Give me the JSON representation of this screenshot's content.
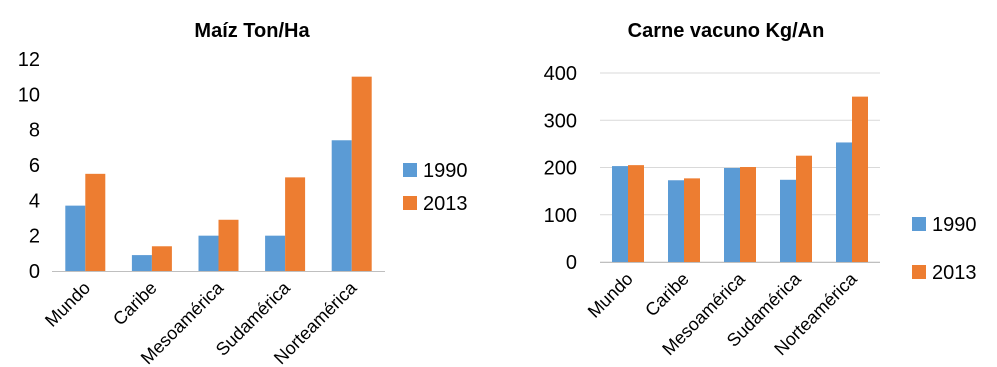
{
  "chart_data": [
    {
      "type": "bar",
      "title": "Maíz Ton/Ha",
      "categories": [
        "Mundo",
        "Caribe",
        "Mesoamérica",
        "Sudamérica",
        "Norteamérica"
      ],
      "series": [
        {
          "name": "1990",
          "color": "#5b9bd5",
          "values": [
            3.7,
            0.9,
            2.0,
            2.0,
            7.4
          ]
        },
        {
          "name": "2013",
          "color": "#ed7d31",
          "values": [
            5.5,
            1.4,
            2.9,
            5.3,
            11.0
          ]
        }
      ],
      "ylim": [
        0,
        12
      ],
      "yticks": [
        "0",
        "2",
        "4",
        "6",
        "8",
        "10",
        "12"
      ],
      "grid": false,
      "legend": "right"
    },
    {
      "type": "bar",
      "title": "Carne vacuno Kg/An",
      "categories": [
        "Mundo",
        "Caribe",
        "Mesoamérica",
        "Sudamérica",
        "Norteamérica"
      ],
      "series": [
        {
          "name": "1990",
          "color": "#5b9bd5",
          "values": [
            203,
            173,
            199,
            174,
            253
          ]
        },
        {
          "name": "2013",
          "color": "#ed7d31",
          "values": [
            205,
            177,
            201,
            225,
            350
          ]
        }
      ],
      "ylim": [
        0,
        400
      ],
      "yticks": [
        "0",
        "100",
        "200",
        "300",
        "400"
      ],
      "grid": true,
      "legend": "right"
    }
  ]
}
